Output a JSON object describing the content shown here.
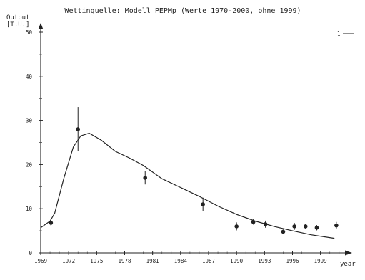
{
  "chart_data": {
    "type": "scatter",
    "title": "Wettinquelle: Modell PEPMp (Werte 1970-2000, ohne 1999)",
    "ylabel_line1": "Output",
    "ylabel_line2": "[T.U.]",
    "xlabel": "year",
    "legend_label": "1",
    "legend_placement": "top-right",
    "xlim": [
      1969,
      2001.4
    ],
    "ylim": [
      0,
      50
    ],
    "x_ticks": [
      1969,
      1972,
      1975,
      1978,
      1981,
      1984,
      1987,
      1990,
      1993,
      1996,
      1999
    ],
    "x_tick_labels": [
      "1969",
      "1972",
      "1975",
      "1978",
      "1981",
      "1984",
      "1987",
      "1990",
      "1993",
      "1996",
      "1999"
    ],
    "y_ticks": [
      0,
      10,
      20,
      30,
      40,
      50
    ],
    "y_tick_labels": [
      "0",
      "10",
      "20",
      "30",
      "40",
      "50"
    ],
    "grid": false,
    "observations": [
      {
        "x": 1970.1,
        "y": 6.8,
        "err": 0.8
      },
      {
        "x": 1973.0,
        "y": 28.0,
        "err": 5.0
      },
      {
        "x": 1980.2,
        "y": 17.0,
        "err": 1.5
      },
      {
        "x": 1986.4,
        "y": 11.0,
        "err": 1.5
      },
      {
        "x": 1990.0,
        "y": 6.0,
        "err": 0.9
      },
      {
        "x": 1991.8,
        "y": 7.0,
        "err": 0.6
      },
      {
        "x": 1993.1,
        "y": 6.5,
        "err": 0.8
      },
      {
        "x": 1995.0,
        "y": 4.8,
        "err": 0.5
      },
      {
        "x": 1996.2,
        "y": 6.0,
        "err": 0.8
      },
      {
        "x": 1997.4,
        "y": 6.0,
        "err": 0.6
      },
      {
        "x": 1998.6,
        "y": 5.7,
        "err": 0.6
      },
      {
        "x": 2000.7,
        "y": 6.2,
        "err": 0.8
      }
    ],
    "model_curve": {
      "x": [
        1969,
        1970,
        1970.5,
        1971.5,
        1972.5,
        1973.3,
        1974.2,
        1975.5,
        1977,
        1978.5,
        1980,
        1982,
        1984,
        1986,
        1988,
        1990,
        1992,
        1994,
        1996,
        1998,
        2000.5
      ],
      "y": [
        5.7,
        7.2,
        9.0,
        17.0,
        24.0,
        26.5,
        27.1,
        25.5,
        23.0,
        21.5,
        19.8,
        16.8,
        14.8,
        12.8,
        10.6,
        8.7,
        7.2,
        6.0,
        5.0,
        4.1,
        3.3
      ]
    }
  }
}
